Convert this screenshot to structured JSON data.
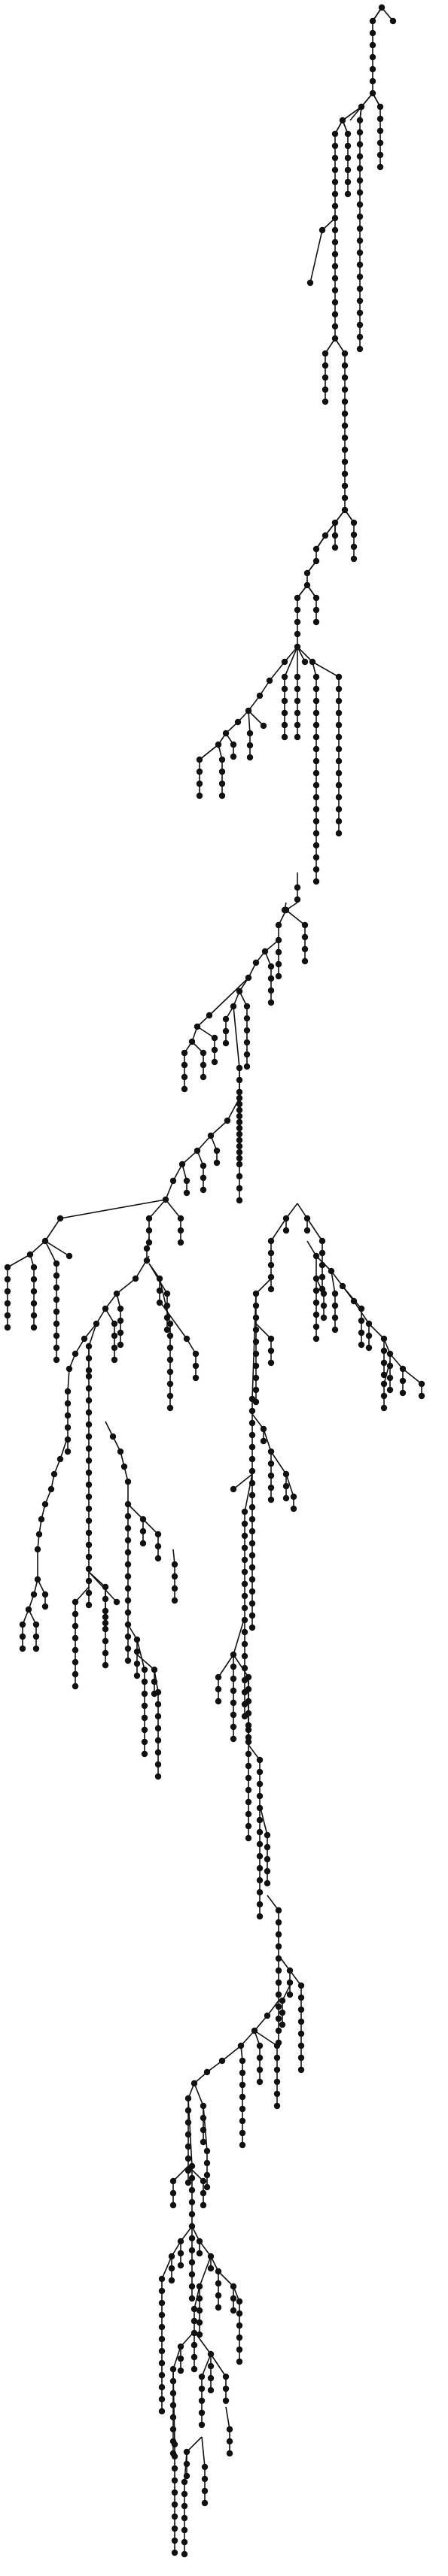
{
  "figure": {
    "type": "tree",
    "description_visible_text": "",
    "node_color": "#111111",
    "edge_color": "#111111",
    "background": "#ffffff"
  }
}
